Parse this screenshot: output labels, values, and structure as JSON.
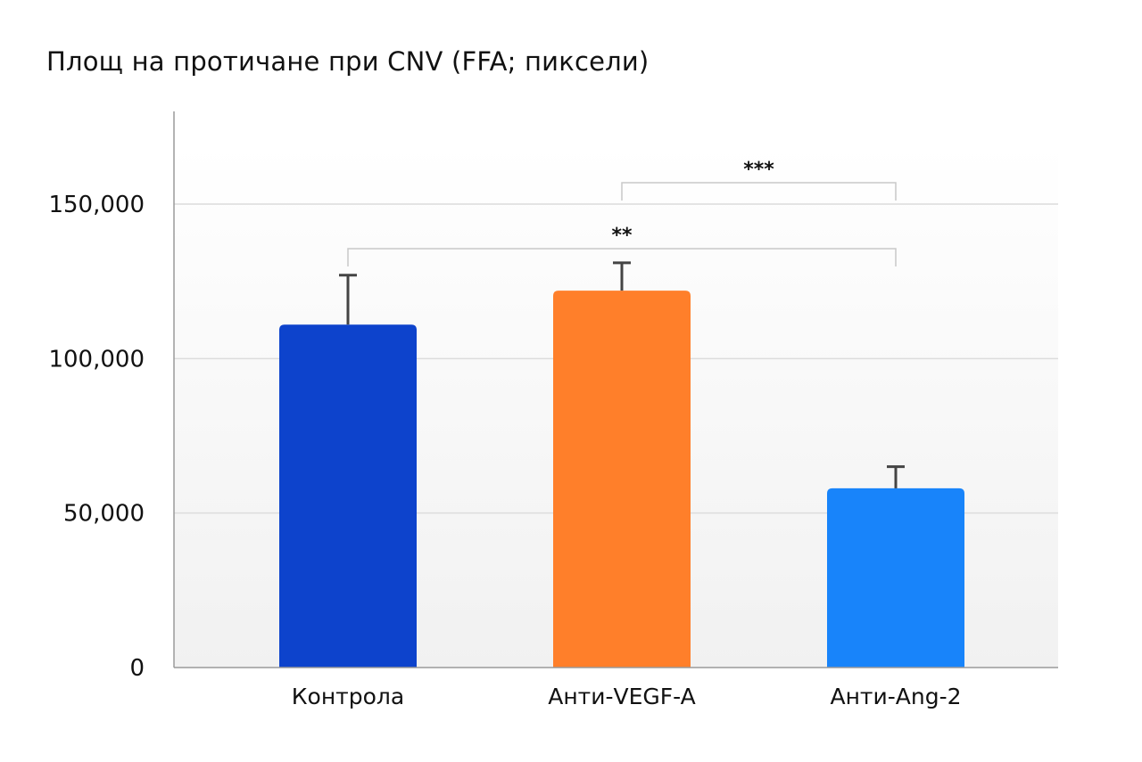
{
  "chart_data": {
    "type": "bar",
    "title": "Площ на протичане при CNV (FFA; пиксели)",
    "xlabel": "",
    "ylabel": "",
    "ylim": [
      0,
      180000
    ],
    "yticks": [
      0,
      50000,
      100000,
      150000
    ],
    "ytick_labels": [
      "0",
      "50,000",
      "100,000",
      "150,000"
    ],
    "grid": true,
    "categories": [
      "Контрола",
      "Анти-VEGF-A",
      "Анти-Ang-2"
    ],
    "values": [
      111000,
      122000,
      58000
    ],
    "errors": [
      16000,
      9000,
      7000
    ],
    "colors": [
      "#0d43cc",
      "#ff7f2a",
      "#1884fa"
    ],
    "significance": [
      {
        "from": 0,
        "to": 2,
        "label": "**"
      },
      {
        "from": 1,
        "to": 2,
        "label": "***"
      }
    ]
  }
}
